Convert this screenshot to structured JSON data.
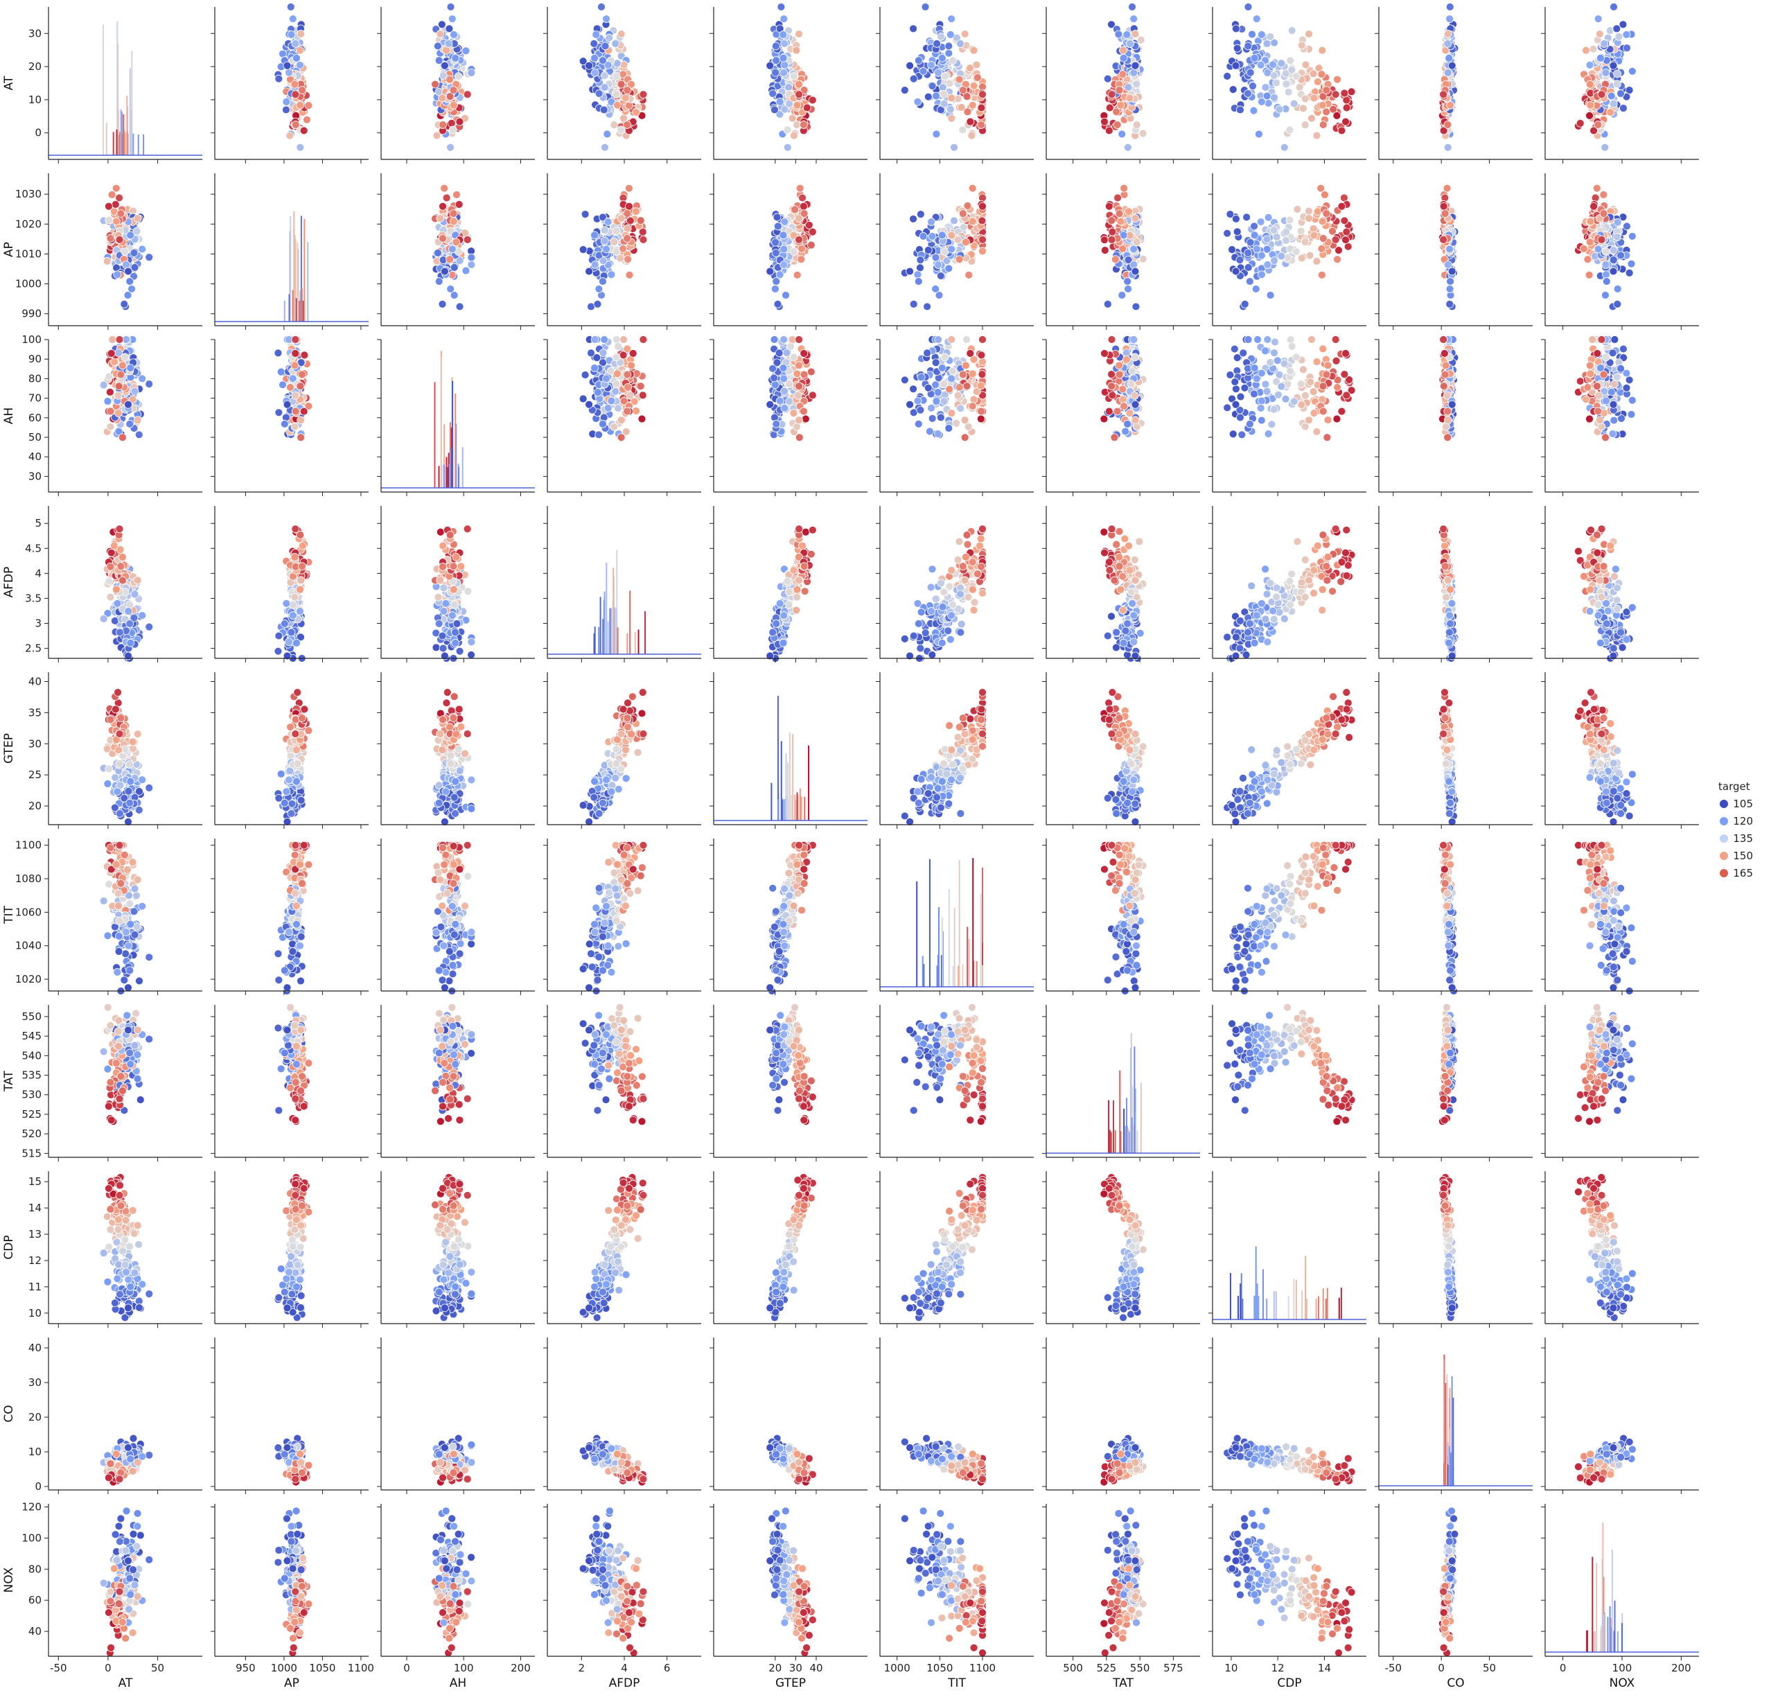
{
  "chart_data": {
    "type": "scatter",
    "subtype": "pairplot",
    "variables": [
      "AT",
      "AP",
      "AH",
      "AFDP",
      "GTEP",
      "TIT",
      "TAT",
      "CDP",
      "CO",
      "NOX"
    ],
    "axes": {
      "AT": {
        "range": [
          -60,
          95
        ],
        "ticks": [
          -50,
          0,
          50
        ],
        "y_range": [
          -8,
          38
        ],
        "y_ticks": [
          0,
          10,
          20,
          30
        ]
      },
      "AP": {
        "range": [
          910,
          1110
        ],
        "ticks": [
          950,
          1000,
          1050,
          1100
        ],
        "y_range": [
          986,
          1037
        ],
        "y_ticks": [
          990,
          1000,
          1010,
          1020,
          1030
        ]
      },
      "AH": {
        "range": [
          -45,
          225
        ],
        "ticks": [
          0,
          100,
          200
        ],
        "y_range": [
          22,
          100
        ],
        "y_ticks": [
          30,
          40,
          50,
          60,
          70,
          80,
          90,
          100
        ]
      },
      "AFDP": {
        "range": [
          0.4,
          7.6
        ],
        "ticks": [
          2,
          4,
          6
        ],
        "y_range": [
          2.3,
          5.35
        ],
        "y_ticks": [
          2.5,
          3.0,
          3.5,
          4.0,
          4.5,
          5.0
        ]
      },
      "GTEP": {
        "range": [
          -10,
          65
        ],
        "ticks": [
          20,
          30,
          40
        ],
        "y_range": [
          17,
          41.5
        ],
        "y_ticks": [
          20,
          25,
          30,
          35,
          40
        ]
      },
      "TIT": {
        "range": [
          980,
          1160
        ],
        "ticks": [
          1000,
          1050,
          1100
        ],
        "y_range": [
          1013,
          1104
        ],
        "y_ticks": [
          1020,
          1040,
          1060,
          1080,
          1100
        ]
      },
      "TAT": {
        "range": [
          480,
          595
        ],
        "ticks": [
          500,
          525,
          550,
          575
        ],
        "y_range": [
          514,
          553
        ],
        "y_ticks": [
          515,
          520,
          525,
          530,
          535,
          540,
          545,
          550
        ]
      },
      "CDP": {
        "range": [
          9.2,
          15.8
        ],
        "ticks": [
          10,
          12,
          14
        ],
        "y_range": [
          9.6,
          15.4
        ],
        "y_ticks": [
          10,
          11,
          12,
          13,
          14,
          15
        ]
      },
      "CO": {
        "range": [
          -65,
          95
        ],
        "ticks": [
          -50,
          0,
          50
        ],
        "y_range": [
          -1,
          43
        ],
        "y_ticks": [
          0,
          10,
          20,
          30,
          40
        ]
      },
      "NOX": {
        "range": [
          -30,
          230
        ],
        "ticks": [
          0,
          100,
          200
        ],
        "y_range": [
          24,
          122
        ],
        "y_ticks": [
          40,
          60,
          80,
          100,
          120
        ]
      }
    },
    "legend": {
      "title": "target",
      "placement": "right",
      "entries": [
        "105",
        "120",
        "135",
        "150",
        "165"
      ],
      "colors": [
        "#3b4cc0",
        "#7b9ff9",
        "#c0d4f5",
        "#f6a385",
        "#dc5d4a"
      ]
    },
    "colormap": "coolwarm",
    "diagonal": "histogram",
    "grid": false
  }
}
